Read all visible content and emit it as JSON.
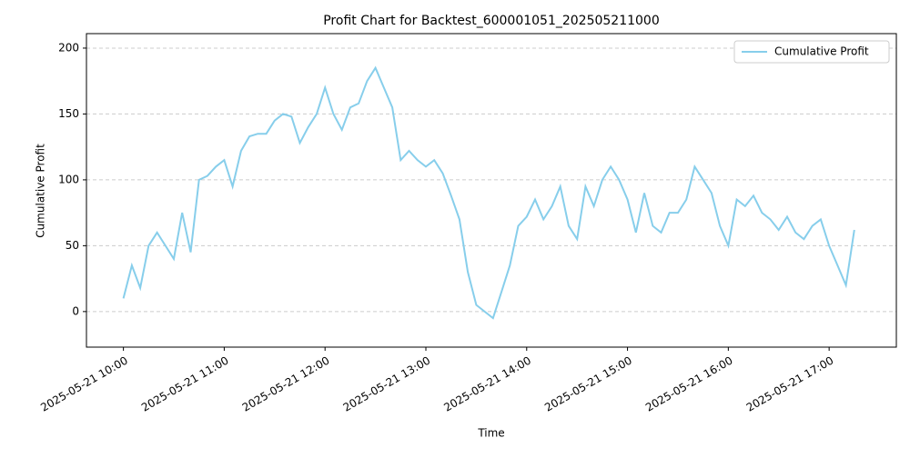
{
  "chart_data": {
    "type": "line",
    "title": "Profit Chart for Backtest_600001051_202505211000",
    "xlabel": "Time",
    "ylabel": "Cumulative Profit",
    "x": [
      "2025-05-21 10:00",
      "2025-05-21 10:05",
      "2025-05-21 10:10",
      "2025-05-21 10:15",
      "2025-05-21 10:20",
      "2025-05-21 10:25",
      "2025-05-21 10:30",
      "2025-05-21 10:35",
      "2025-05-21 10:40",
      "2025-05-21 10:45",
      "2025-05-21 10:50",
      "2025-05-21 10:55",
      "2025-05-21 11:00",
      "2025-05-21 11:05",
      "2025-05-21 11:10",
      "2025-05-21 11:15",
      "2025-05-21 11:20",
      "2025-05-21 11:25",
      "2025-05-21 11:30",
      "2025-05-21 11:35",
      "2025-05-21 11:40",
      "2025-05-21 11:45",
      "2025-05-21 11:50",
      "2025-05-21 11:55",
      "2025-05-21 12:00",
      "2025-05-21 12:05",
      "2025-05-21 12:10",
      "2025-05-21 12:15",
      "2025-05-21 12:20",
      "2025-05-21 12:25",
      "2025-05-21 12:30",
      "2025-05-21 12:35",
      "2025-05-21 12:40",
      "2025-05-21 12:45",
      "2025-05-21 12:50",
      "2025-05-21 12:55",
      "2025-05-21 13:00",
      "2025-05-21 13:05",
      "2025-05-21 13:10",
      "2025-05-21 13:15",
      "2025-05-21 13:20",
      "2025-05-21 13:25",
      "2025-05-21 13:30",
      "2025-05-21 13:35",
      "2025-05-21 13:40",
      "2025-05-21 13:45",
      "2025-05-21 13:50",
      "2025-05-21 13:55",
      "2025-05-21 14:00",
      "2025-05-21 14:05",
      "2025-05-21 14:10",
      "2025-05-21 14:15",
      "2025-05-21 14:20",
      "2025-05-21 14:25",
      "2025-05-21 14:30",
      "2025-05-21 14:35",
      "2025-05-21 14:40",
      "2025-05-21 14:45",
      "2025-05-21 14:50",
      "2025-05-21 14:55",
      "2025-05-21 15:00",
      "2025-05-21 15:05",
      "2025-05-21 15:10",
      "2025-05-21 15:15",
      "2025-05-21 15:20",
      "2025-05-21 15:25",
      "2025-05-21 15:30",
      "2025-05-21 15:35",
      "2025-05-21 15:40",
      "2025-05-21 15:45",
      "2025-05-21 15:50",
      "2025-05-21 15:55",
      "2025-05-21 16:00",
      "2025-05-21 16:05",
      "2025-05-21 16:10",
      "2025-05-21 16:15",
      "2025-05-21 16:20",
      "2025-05-21 16:25",
      "2025-05-21 16:30",
      "2025-05-21 16:35",
      "2025-05-21 16:40",
      "2025-05-21 16:45",
      "2025-05-21 16:50",
      "2025-05-21 16:55",
      "2025-05-21 17:00",
      "2025-05-21 17:05",
      "2025-05-21 17:10",
      "2025-05-21 17:15"
    ],
    "series": [
      {
        "name": "Cumulative Profit",
        "color": "#87ceeb",
        "values": [
          10,
          35,
          18,
          50,
          60,
          50,
          40,
          75,
          45,
          100,
          103,
          110,
          115,
          95,
          122,
          133,
          135,
          135,
          145,
          150,
          148,
          128,
          140,
          150,
          170,
          150,
          138,
          155,
          158,
          175,
          185,
          170,
          155,
          115,
          122,
          115,
          110,
          115,
          105,
          88,
          70,
          30,
          5,
          0,
          -5,
          15,
          35,
          65,
          72,
          85,
          70,
          80,
          95,
          65,
          55,
          95,
          80,
          100,
          110,
          100,
          85,
          60,
          90,
          65,
          60,
          75,
          75,
          85,
          110,
          100,
          90,
          65,
          50,
          85,
          80,
          88,
          75,
          70,
          62,
          72,
          60,
          55,
          65,
          70,
          50,
          35,
          20,
          62
        ]
      }
    ],
    "xlim": [
      "2025-05-21 09:38",
      "2025-05-21 17:40"
    ],
    "xticks": [
      "2025-05-21 10:00",
      "2025-05-21 11:00",
      "2025-05-21 12:00",
      "2025-05-21 13:00",
      "2025-05-21 14:00",
      "2025-05-21 15:00",
      "2025-05-21 16:00",
      "2025-05-21 17:00"
    ],
    "ylim": [
      -27,
      211
    ],
    "yticks": [
      0,
      50,
      100,
      150,
      200
    ],
    "grid": true,
    "legend": "upper right"
  }
}
